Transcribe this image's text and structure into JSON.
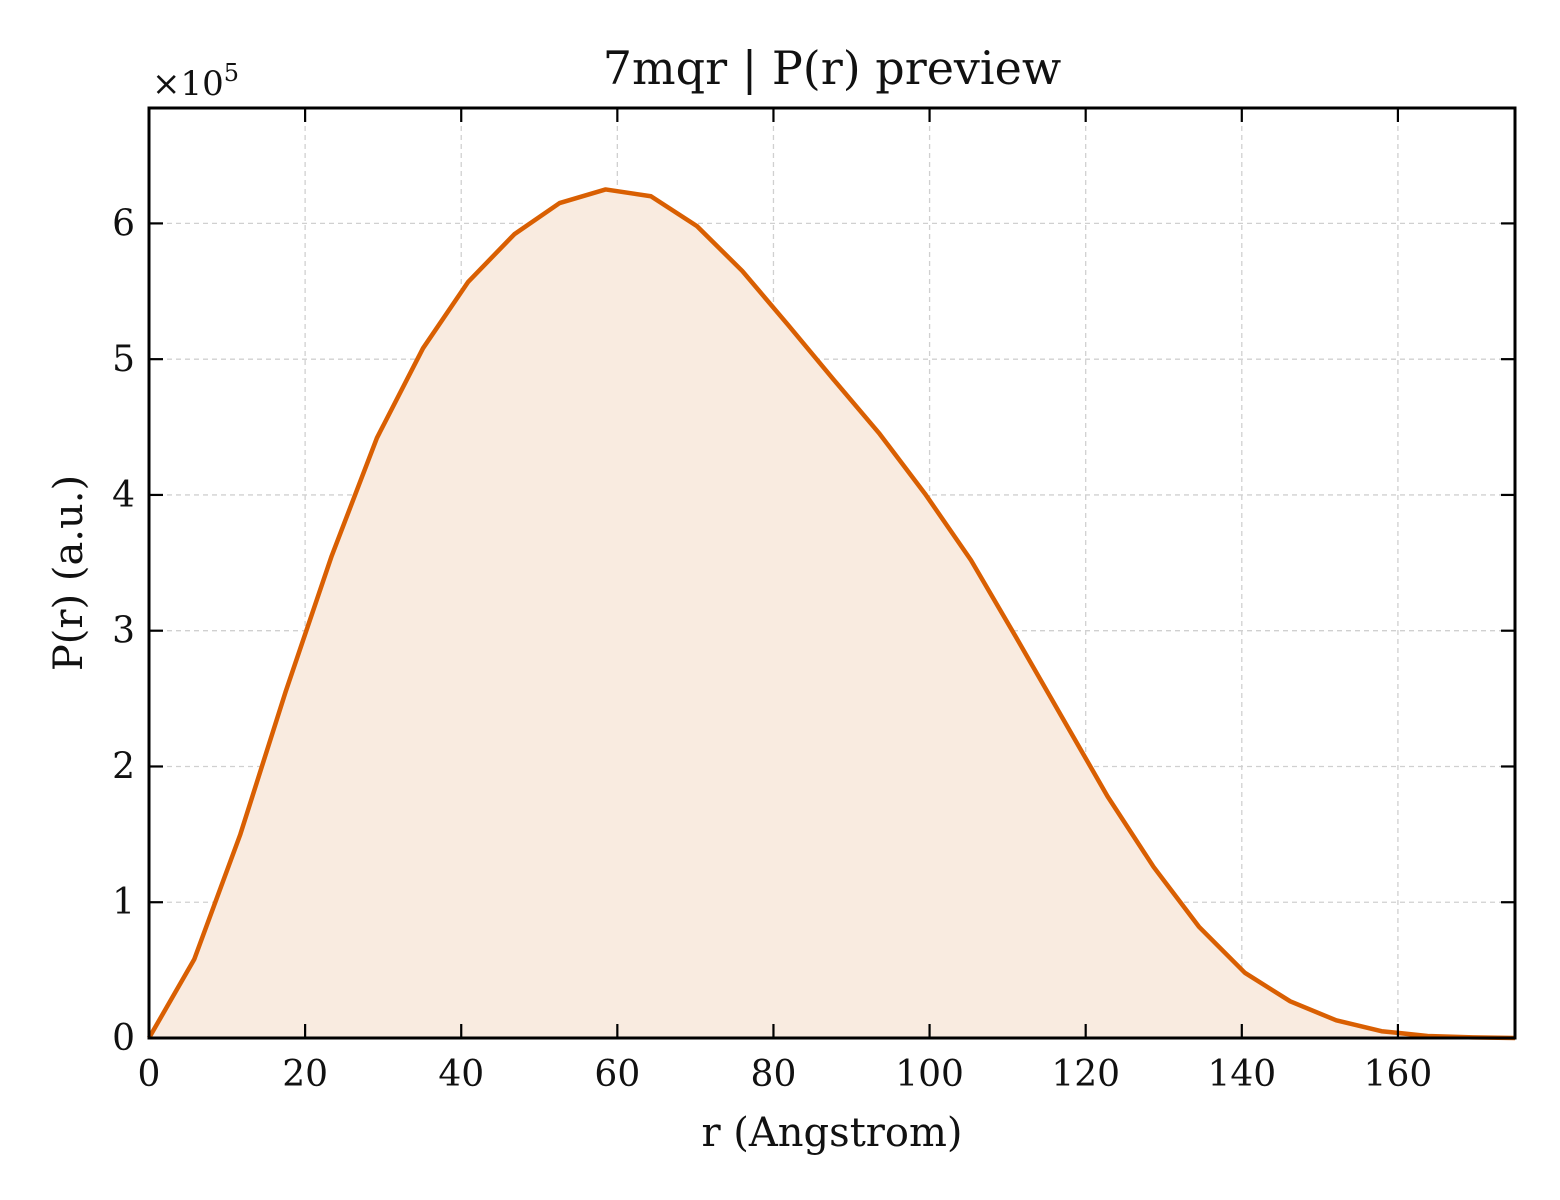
{
  "chart_data": {
    "type": "area",
    "title": "7mqr | P(r) preview",
    "xlabel": "r (Angstrom)",
    "ylabel": "P(r) (a.u.)",
    "y_multiplier_label": "×10",
    "y_multiplier_exponent": "5",
    "xlim": [
      0,
      175
    ],
    "ylim": [
      0,
      6.85
    ],
    "xticks": [
      0,
      20,
      40,
      60,
      80,
      100,
      120,
      140,
      160
    ],
    "yticks": [
      0,
      1,
      2,
      3,
      4,
      5,
      6
    ],
    "grid": true,
    "line_color": "#d95f02",
    "fill_color": "#f9ebe0",
    "series": [
      {
        "x": [
          0,
          5.8,
          11.7,
          17.5,
          23.4,
          29.2,
          35.1,
          40.9,
          46.8,
          52.6,
          58.5,
          64.3,
          70.2,
          76.0,
          81.9,
          87.7,
          93.6,
          99.4,
          105.3,
          111.1,
          117.0,
          122.8,
          128.7,
          134.5,
          140.4,
          146.2,
          152.1,
          157.9,
          163.8,
          169.6,
          175
        ],
        "y": [
          0.0,
          0.58,
          1.5,
          2.55,
          3.55,
          4.42,
          5.08,
          5.57,
          5.92,
          6.15,
          6.25,
          6.2,
          5.98,
          5.65,
          5.25,
          4.85,
          4.45,
          4.01,
          3.52,
          2.95,
          2.36,
          1.78,
          1.26,
          0.82,
          0.48,
          0.27,
          0.13,
          0.05,
          0.015,
          0.005,
          0.0
        ]
      }
    ]
  }
}
